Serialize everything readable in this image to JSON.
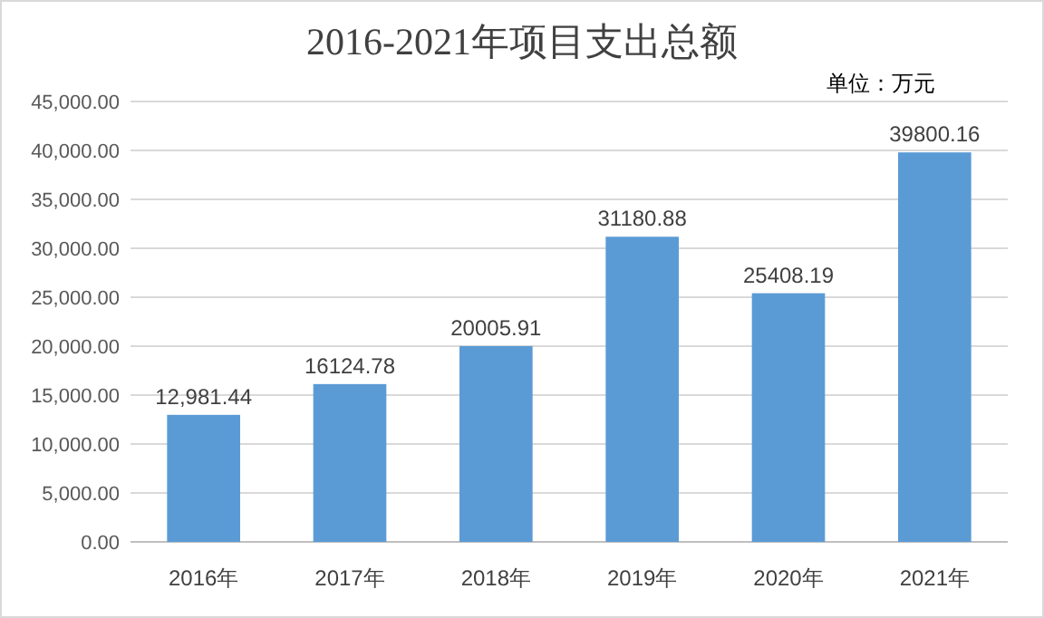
{
  "chart_data": {
    "type": "bar",
    "title": "2016-2021年项目支出总额",
    "annotations": [
      "单位：万元"
    ],
    "categories": [
      "2016年",
      "2017年",
      "2018年",
      "2019年",
      "2020年",
      "2021年"
    ],
    "values": [
      12981.44,
      16124.78,
      20005.91,
      31180.88,
      25408.19,
      39800.16
    ],
    "value_labels": [
      "12,981.44",
      "16124.78",
      "20005.91",
      "31180.88",
      "25408.19",
      "39800.16"
    ],
    "color": "#5b9bd5",
    "ylim": [
      0,
      45000
    ],
    "yticks": [
      {
        "value": 0,
        "label": "0.00"
      },
      {
        "value": 5000,
        "label": "5,000.00"
      },
      {
        "value": 10000,
        "label": "10,000.00"
      },
      {
        "value": 15000,
        "label": "15,000.00"
      },
      {
        "value": 20000,
        "label": "20,000.00"
      },
      {
        "value": 25000,
        "label": "25,000.00"
      },
      {
        "value": 30000,
        "label": "30,000.00"
      },
      {
        "value": 35000,
        "label": "35,000.00"
      },
      {
        "value": 40000,
        "label": "40,000.00"
      },
      {
        "value": 45000,
        "label": "45,000.00"
      }
    ],
    "grid": "y"
  }
}
